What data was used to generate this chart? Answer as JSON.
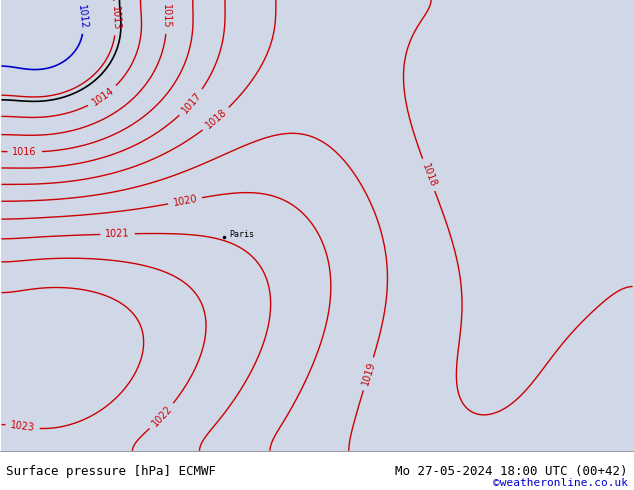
{
  "title_left": "Surface pressure [hPa] ECMWF",
  "title_right": "Mo 27-05-2024 18:00 UTC (00+42)",
  "credit": "©weatheronline.co.uk",
  "credit_color": "#0000cc",
  "bg_color": "#c8e6c8",
  "land_color": "#c8e6c8",
  "sea_color": "#d0d8e8",
  "bottom_bar_color": "#ffffff",
  "bottom_text_color": "#000000",
  "contour_color_red": "#cc0000",
  "contour_color_blue": "#0000cc",
  "contour_color_black": "#000000",
  "label_color_red": "#cc0000",
  "label_color_blue": "#0000cc",
  "figsize": [
    6.34,
    4.9
  ],
  "dpi": 100
}
